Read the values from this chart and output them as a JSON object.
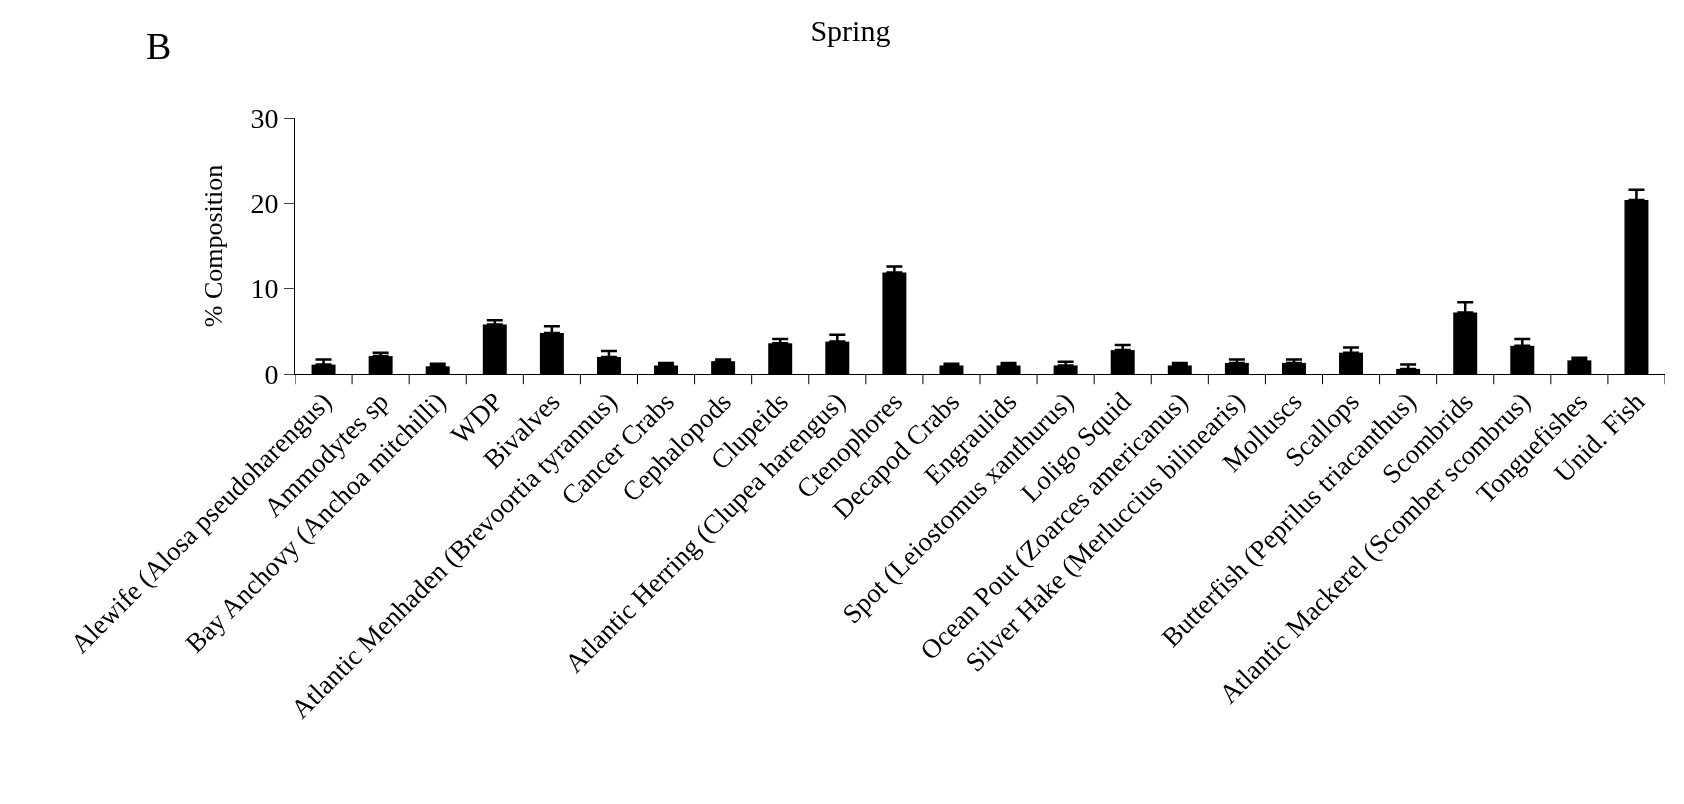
{
  "chart_data": {
    "type": "bar",
    "title": "Spring",
    "ylabel": "% Composition",
    "annotations": [
      "B"
    ],
    "categories": [
      "Alewife (Alosa pseudoharengus)",
      "Ammodytes sp",
      "Bay Anchovy (Anchoa mitchilli)",
      "WDP",
      "Bivalves",
      "Atlantic Menhaden (Brevoortia tyrannus)",
      "Cancer Crabs",
      "Cephalopods",
      "Clupeids",
      "Atlantic Herring (Clupea harengus)",
      "Ctenophores",
      "Decapod Crabs",
      "Engraulids",
      "Spot (Leiostomus xanthurus)",
      "Loligo Squid",
      "Ocean Pout (Zoarces americanus)",
      "Silver Hake (Merluccius bilinearis)",
      "Molluscs",
      "Scallops",
      "Butterfish (Peprilus triacanthus)",
      "Scombrids",
      "Atlantic Mackerel (Scomber scombrus)",
      "Tonguefishes",
      "Unid. Fish"
    ],
    "values": [
      1.1,
      2.1,
      0.9,
      5.8,
      4.8,
      2.0,
      1.0,
      1.5,
      3.6,
      3.8,
      11.9,
      1.0,
      1.0,
      1.0,
      2.8,
      1.0,
      1.3,
      1.3,
      2.5,
      0.6,
      7.2,
      3.3,
      1.6,
      20.4
    ],
    "errors": [
      [
        1.1,
        1.7
      ],
      [
        2.1,
        2.5
      ],
      [
        0.9,
        1.2
      ],
      [
        5.8,
        6.3
      ],
      [
        4.8,
        5.6
      ],
      [
        2.0,
        2.7
      ],
      [
        1.0,
        1.3
      ],
      [
        1.5,
        1.7
      ],
      [
        3.6,
        4.1
      ],
      [
        3.8,
        4.6
      ],
      [
        11.9,
        12.6
      ],
      [
        1.0,
        1.2
      ],
      [
        1.0,
        1.3
      ],
      [
        1.0,
        1.45
      ],
      [
        2.8,
        3.4
      ],
      [
        1.0,
        1.3
      ],
      [
        1.3,
        1.7
      ],
      [
        1.3,
        1.7
      ],
      [
        2.5,
        3.1
      ],
      [
        0.6,
        1.1
      ],
      [
        7.2,
        8.4
      ],
      [
        3.3,
        4.1
      ],
      [
        1.6,
        1.9
      ],
      [
        20.4,
        21.6
      ]
    ],
    "color": "#000000",
    "ylim": [
      0,
      30
    ],
    "yticks": [
      0,
      10,
      20,
      30
    ]
  }
}
